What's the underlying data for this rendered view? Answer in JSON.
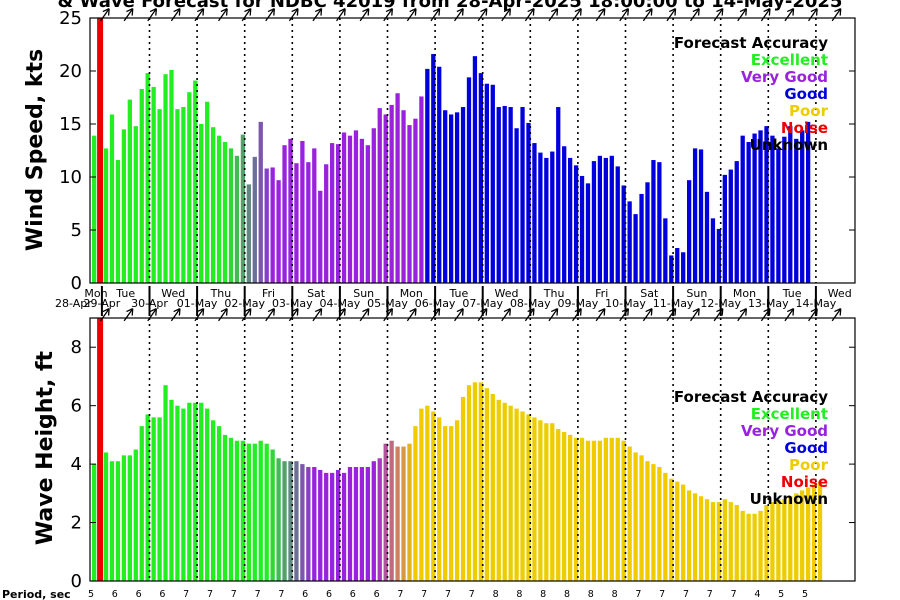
{
  "title": "& Wave Forecast for NDBC 42019 from 28-Apr-2025 18:00:00 to 14-May-2025",
  "colors": {
    "excellent": "#22ee22",
    "very_good": "#9922dd",
    "good": "#0000dd",
    "poor": "#eecc00",
    "noise": "#ee0000",
    "unknown": "#000000"
  },
  "legend": {
    "title": "Forecast Accuracy",
    "items": [
      {
        "label": "Excellent",
        "key": "excellent"
      },
      {
        "label": "Very Good",
        "key": "very_good"
      },
      {
        "label": "Good",
        "key": "good"
      },
      {
        "label": "Poor",
        "key": "poor"
      },
      {
        "label": "Noise",
        "key": "noise"
      },
      {
        "label": "Unknown",
        "key": "unknown"
      }
    ]
  },
  "days": [
    {
      "dow": "Mon",
      "date": "28-Apr"
    },
    {
      "dow": "Tue",
      "date": "29-Apr"
    },
    {
      "dow": "Wed",
      "date": "30-Apr"
    },
    {
      "dow": "Thu",
      "date": "01-May"
    },
    {
      "dow": "Fri",
      "date": "02-May"
    },
    {
      "dow": "Sat",
      "date": "03-May"
    },
    {
      "dow": "Sun",
      "date": "04-May"
    },
    {
      "dow": "Mon",
      "date": "05-May"
    },
    {
      "dow": "Tue",
      "date": "06-May"
    },
    {
      "dow": "Wed",
      "date": "07-May"
    },
    {
      "dow": "Thu",
      "date": "08-May"
    },
    {
      "dow": "Fri",
      "date": "09-May"
    },
    {
      "dow": "Sat",
      "date": "10-May"
    },
    {
      "dow": "Sun",
      "date": "11-May"
    },
    {
      "dow": "Mon",
      "date": "12-May"
    },
    {
      "dow": "Tue",
      "date": "13-May"
    },
    {
      "dow": "Wed",
      "date": "14-May"
    }
  ],
  "period_label": "Period, sec",
  "periods": [
    "5",
    "6",
    "6",
    "6",
    "7",
    "7",
    "7",
    "7",
    "7",
    "6",
    "6",
    "6",
    "6",
    "7",
    "7",
    "7",
    "7",
    "8",
    "8",
    "8",
    "8",
    "8",
    "8",
    "7",
    "7",
    "7",
    "7",
    "7",
    "4",
    "5",
    "5"
  ],
  "chart_data": [
    {
      "type": "bar",
      "name": "wind",
      "ylabel": "Wind Speed, kts",
      "ylim": [
        0,
        25
      ],
      "yticks": [
        0,
        5,
        10,
        15,
        20,
        25
      ],
      "x_start": "2025-04-28 18:00",
      "x_step_hours": 3,
      "noise_marker": "2025-04-28 21:00",
      "direction_arrows": "top edge",
      "values": [
        13.9,
        16.2,
        12.7,
        15.9,
        11.6,
        14.5,
        17.3,
        14.8,
        18.3,
        19.8,
        18.5,
        16.4,
        19.7,
        20.1,
        16.4,
        16.6,
        18.0,
        19.1,
        15.0,
        17.1,
        14.7,
        13.9,
        13.3,
        12.7,
        12.0,
        14.0,
        9.3,
        11.9,
        15.2,
        10.8,
        10.9,
        9.7,
        13.0,
        13.6,
        11.3,
        13.4,
        11.4,
        12.7,
        8.7,
        11.2,
        13.2,
        13.1,
        14.2,
        13.9,
        14.4,
        13.6,
        13.0,
        14.6,
        16.5,
        15.9,
        16.8,
        17.9,
        16.3,
        14.9,
        15.5,
        17.6,
        20.2,
        21.6,
        20.4,
        16.3,
        15.9,
        16.1,
        16.6,
        19.4,
        21.4,
        19.8,
        18.8,
        18.7,
        16.6,
        16.7,
        16.6,
        14.6,
        16.6,
        15.1,
        13.2,
        12.3,
        11.8,
        12.4,
        16.6,
        12.9,
        11.8,
        11.1,
        10.1,
        9.4,
        11.5,
        12.0,
        11.8,
        12.0,
        11.0,
        9.2,
        7.7,
        6.5,
        8.4,
        9.5,
        11.6,
        11.4,
        6.1,
        2.6,
        3.3,
        2.9,
        9.7,
        12.7,
        12.6,
        8.6,
        6.1,
        5.1,
        10.2,
        10.7,
        11.5,
        13.9,
        13.3,
        14.1,
        14.4,
        14.8,
        13.9,
        12.7,
        13.8,
        14.8,
        13.6,
        14.4,
        15.2
      ],
      "accuracy": "excellent 0-22, very_good 23-47 (blend), very_good 48-55, good 56-end"
    },
    {
      "type": "bar",
      "name": "wave",
      "ylabel": "Wave Height, ft",
      "ylim": [
        0,
        9
      ],
      "yticks": [
        0,
        2,
        4,
        6,
        8
      ],
      "x_start": "2025-04-28 18:00",
      "x_step_hours": 3,
      "noise_marker": "2025-04-28 21:00",
      "direction_arrows": "top edge",
      "values": [
        4.0,
        4.0,
        4.4,
        4.1,
        4.1,
        4.3,
        4.3,
        4.5,
        5.3,
        5.7,
        5.6,
        5.6,
        6.7,
        6.2,
        6.0,
        5.9,
        6.1,
        6.1,
        6.1,
        5.9,
        5.5,
        5.3,
        5.0,
        4.9,
        4.8,
        4.8,
        4.7,
        4.7,
        4.8,
        4.7,
        4.5,
        4.2,
        4.1,
        4.1,
        4.1,
        4.0,
        3.9,
        3.9,
        3.8,
        3.7,
        3.7,
        3.8,
        3.7,
        3.9,
        3.9,
        3.9,
        3.9,
        4.1,
        4.2,
        4.7,
        4.8,
        4.6,
        4.6,
        4.7,
        5.3,
        5.9,
        6.0,
        5.8,
        5.6,
        5.3,
        5.3,
        5.5,
        6.3,
        6.7,
        6.8,
        6.8,
        6.6,
        6.4,
        6.2,
        6.1,
        6.0,
        5.9,
        5.8,
        5.7,
        5.6,
        5.5,
        5.4,
        5.4,
        5.2,
        5.1,
        5.0,
        4.9,
        4.9,
        4.8,
        4.8,
        4.8,
        4.9,
        4.9,
        4.9,
        4.8,
        4.6,
        4.4,
        4.3,
        4.1,
        4.0,
        3.9,
        3.7,
        3.5,
        3.4,
        3.3,
        3.1,
        3.0,
        2.9,
        2.8,
        2.7,
        2.7,
        2.8,
        2.7,
        2.6,
        2.4,
        2.3,
        2.3,
        2.4,
        2.6,
        2.7,
        2.8,
        2.8,
        2.9,
        3.0,
        3.1,
        3.2,
        3.3,
        3.4
      ],
      "accuracy": "excellent 0-29, very_good 30-53 (blend), poor 54-end"
    }
  ]
}
